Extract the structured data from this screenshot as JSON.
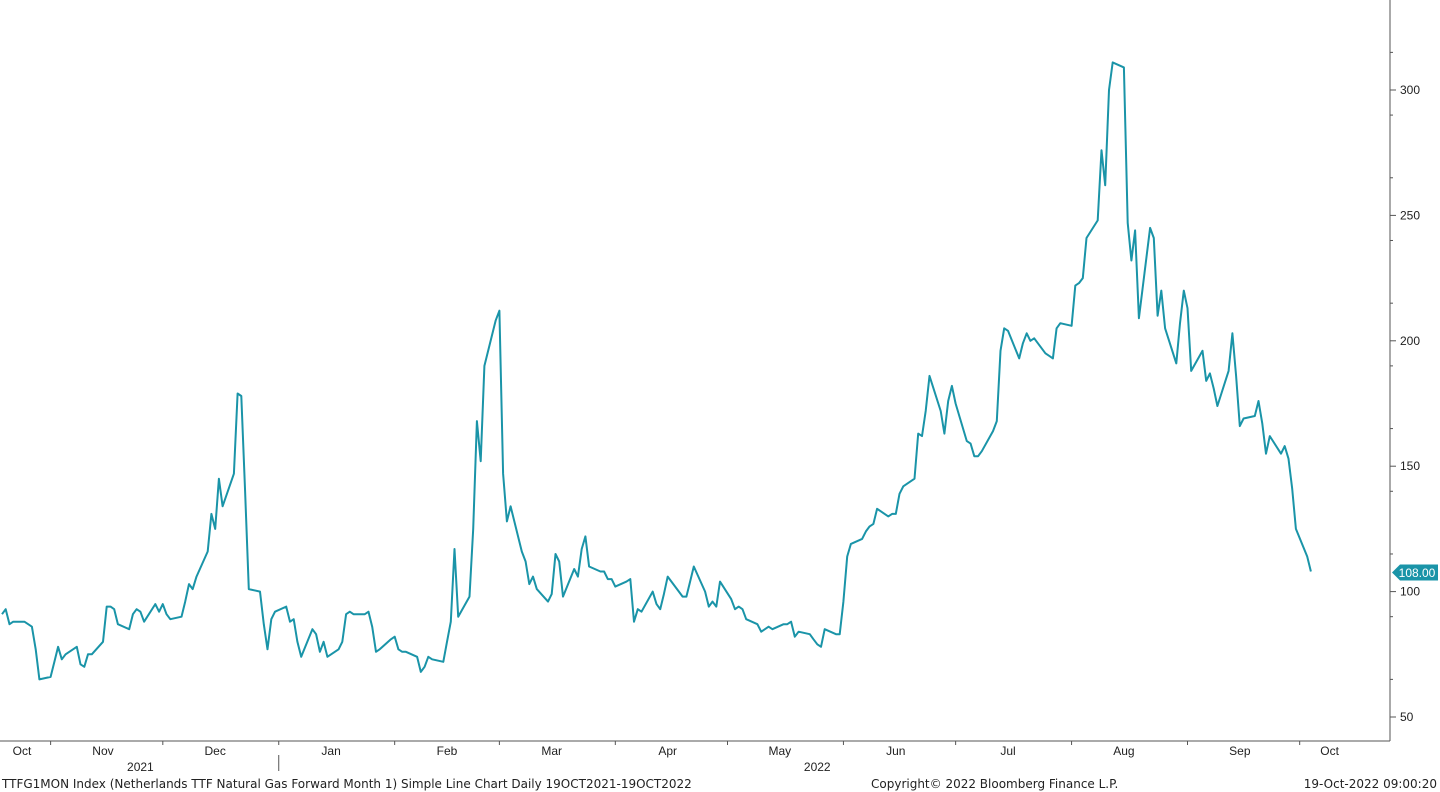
{
  "chart_data": {
    "type": "line",
    "series": [
      {
        "color": "#1a94a8",
        "points": [
          [
            "2021-10-19",
            91
          ],
          [
            "2021-10-20",
            93
          ],
          [
            "2021-10-21",
            87
          ],
          [
            "2021-10-22",
            88
          ],
          [
            "2021-10-25",
            88
          ],
          [
            "2021-10-26",
            87
          ],
          [
            "2021-10-27",
            86
          ],
          [
            "2021-10-28",
            77
          ],
          [
            "2021-10-29",
            65
          ],
          [
            "2021-11-01",
            66
          ],
          [
            "2021-11-02",
            72
          ],
          [
            "2021-11-03",
            78
          ],
          [
            "2021-11-04",
            73
          ],
          [
            "2021-11-05",
            75
          ],
          [
            "2021-11-08",
            78
          ],
          [
            "2021-11-09",
            71
          ],
          [
            "2021-11-10",
            70
          ],
          [
            "2021-11-11",
            75
          ],
          [
            "2021-11-12",
            75
          ],
          [
            "2021-11-15",
            80
          ],
          [
            "2021-11-16",
            94
          ],
          [
            "2021-11-17",
            94
          ],
          [
            "2021-11-18",
            93
          ],
          [
            "2021-11-19",
            87
          ],
          [
            "2021-11-22",
            85
          ],
          [
            "2021-11-23",
            91
          ],
          [
            "2021-11-24",
            93
          ],
          [
            "2021-11-25",
            92
          ],
          [
            "2021-11-26",
            88
          ],
          [
            "2021-11-29",
            95
          ],
          [
            "2021-11-30",
            92
          ],
          [
            "2021-12-01",
            95
          ],
          [
            "2021-12-02",
            91
          ],
          [
            "2021-12-03",
            89
          ],
          [
            "2021-12-06",
            90
          ],
          [
            "2021-12-07",
            96
          ],
          [
            "2021-12-08",
            103
          ],
          [
            "2021-12-09",
            101
          ],
          [
            "2021-12-10",
            106
          ],
          [
            "2021-12-13",
            116
          ],
          [
            "2021-12-14",
            131
          ],
          [
            "2021-12-15",
            125
          ],
          [
            "2021-12-16",
            145
          ],
          [
            "2021-12-17",
            134
          ],
          [
            "2021-12-20",
            147
          ],
          [
            "2021-12-21",
            179
          ],
          [
            "2021-12-22",
            178
          ],
          [
            "2021-12-23",
            140
          ],
          [
            "2021-12-24",
            101
          ],
          [
            "2021-12-27",
            100
          ],
          [
            "2021-12-28",
            87
          ],
          [
            "2021-12-29",
            77
          ],
          [
            "2021-12-30",
            89
          ],
          [
            "2021-12-31",
            92
          ],
          [
            "2022-01-03",
            94
          ],
          [
            "2022-01-04",
            88
          ],
          [
            "2022-01-05",
            89
          ],
          [
            "2022-01-06",
            80
          ],
          [
            "2022-01-07",
            74
          ],
          [
            "2022-01-10",
            85
          ],
          [
            "2022-01-11",
            83
          ],
          [
            "2022-01-12",
            76
          ],
          [
            "2022-01-13",
            80
          ],
          [
            "2022-01-14",
            74
          ],
          [
            "2022-01-17",
            77
          ],
          [
            "2022-01-18",
            80
          ],
          [
            "2022-01-19",
            91
          ],
          [
            "2022-01-20",
            92
          ],
          [
            "2022-01-21",
            91
          ],
          [
            "2022-01-24",
            91
          ],
          [
            "2022-01-25",
            92
          ],
          [
            "2022-01-26",
            86
          ],
          [
            "2022-01-27",
            76
          ],
          [
            "2022-01-28",
            77
          ],
          [
            "2022-01-31",
            81
          ],
          [
            "2022-02-01",
            82
          ],
          [
            "2022-02-02",
            77
          ],
          [
            "2022-02-03",
            76
          ],
          [
            "2022-02-04",
            76
          ],
          [
            "2022-02-07",
            74
          ],
          [
            "2022-02-08",
            68
          ],
          [
            "2022-02-09",
            70
          ],
          [
            "2022-02-10",
            74
          ],
          [
            "2022-02-11",
            73
          ],
          [
            "2022-02-14",
            72
          ],
          [
            "2022-02-15",
            80
          ],
          [
            "2022-02-16",
            88
          ],
          [
            "2022-02-17",
            117
          ],
          [
            "2022-02-18",
            90
          ],
          [
            "2022-02-21",
            98
          ],
          [
            "2022-02-22",
            125
          ],
          [
            "2022-02-23",
            168
          ],
          [
            "2022-02-24",
            152
          ],
          [
            "2022-02-25",
            190
          ],
          [
            "2022-02-28",
            208
          ],
          [
            "2022-03-01",
            212
          ],
          [
            "2022-03-02",
            147
          ],
          [
            "2022-03-03",
            128
          ],
          [
            "2022-03-04",
            134
          ],
          [
            "2022-03-07",
            116
          ],
          [
            "2022-03-08",
            112
          ],
          [
            "2022-03-09",
            103
          ],
          [
            "2022-03-10",
            106
          ],
          [
            "2022-03-11",
            101
          ],
          [
            "2022-03-14",
            96
          ],
          [
            "2022-03-15",
            99
          ],
          [
            "2022-03-16",
            115
          ],
          [
            "2022-03-17",
            112
          ],
          [
            "2022-03-18",
            98
          ],
          [
            "2022-03-21",
            109
          ],
          [
            "2022-03-22",
            106
          ],
          [
            "2022-03-23",
            117
          ],
          [
            "2022-03-24",
            122
          ],
          [
            "2022-03-25",
            110
          ],
          [
            "2022-03-28",
            108
          ],
          [
            "2022-03-29",
            108
          ],
          [
            "2022-03-30",
            105
          ],
          [
            "2022-03-31",
            105
          ],
          [
            "2022-04-01",
            102
          ],
          [
            "2022-04-04",
            104
          ],
          [
            "2022-04-05",
            105
          ],
          [
            "2022-04-06",
            88
          ],
          [
            "2022-04-07",
            93
          ],
          [
            "2022-04-08",
            92
          ],
          [
            "2022-04-11",
            100
          ],
          [
            "2022-04-12",
            95
          ],
          [
            "2022-04-13",
            93
          ],
          [
            "2022-04-14",
            99
          ],
          [
            "2022-04-15",
            106
          ],
          [
            "2022-04-18",
            100
          ],
          [
            "2022-04-19",
            98
          ],
          [
            "2022-04-20",
            98
          ],
          [
            "2022-04-21",
            104
          ],
          [
            "2022-04-22",
            110
          ],
          [
            "2022-04-25",
            100
          ],
          [
            "2022-04-26",
            94
          ],
          [
            "2022-04-27",
            96
          ],
          [
            "2022-04-28",
            94
          ],
          [
            "2022-04-29",
            104
          ],
          [
            "2022-05-02",
            97
          ],
          [
            "2022-05-03",
            93
          ],
          [
            "2022-05-04",
            94
          ],
          [
            "2022-05-05",
            93
          ],
          [
            "2022-05-06",
            89
          ],
          [
            "2022-05-09",
            87
          ],
          [
            "2022-05-10",
            84
          ],
          [
            "2022-05-11",
            85
          ],
          [
            "2022-05-12",
            86
          ],
          [
            "2022-05-13",
            85
          ],
          [
            "2022-05-16",
            87
          ],
          [
            "2022-05-17",
            87
          ],
          [
            "2022-05-18",
            88
          ],
          [
            "2022-05-19",
            82
          ],
          [
            "2022-05-20",
            84
          ],
          [
            "2022-05-23",
            83
          ],
          [
            "2022-05-24",
            81
          ],
          [
            "2022-05-25",
            79
          ],
          [
            "2022-05-26",
            78
          ],
          [
            "2022-05-27",
            85
          ],
          [
            "2022-05-30",
            83
          ],
          [
            "2022-05-31",
            83
          ],
          [
            "2022-06-01",
            96
          ],
          [
            "2022-06-02",
            114
          ],
          [
            "2022-06-03",
            119
          ],
          [
            "2022-06-06",
            121
          ],
          [
            "2022-06-07",
            124
          ],
          [
            "2022-06-08",
            126
          ],
          [
            "2022-06-09",
            127
          ],
          [
            "2022-06-10",
            133
          ],
          [
            "2022-06-13",
            130
          ],
          [
            "2022-06-14",
            131
          ],
          [
            "2022-06-15",
            131
          ],
          [
            "2022-06-16",
            139
          ],
          [
            "2022-06-17",
            142
          ],
          [
            "2022-06-20",
            145
          ],
          [
            "2022-06-21",
            163
          ],
          [
            "2022-06-22",
            162
          ],
          [
            "2022-06-23",
            172
          ],
          [
            "2022-06-24",
            186
          ],
          [
            "2022-06-27",
            172
          ],
          [
            "2022-06-28",
            163
          ],
          [
            "2022-06-29",
            176
          ],
          [
            "2022-06-30",
            182
          ],
          [
            "2022-07-01",
            175
          ],
          [
            "2022-07-04",
            160
          ],
          [
            "2022-07-05",
            159
          ],
          [
            "2022-07-06",
            154
          ],
          [
            "2022-07-07",
            154
          ],
          [
            "2022-07-08",
            156
          ],
          [
            "2022-07-11",
            164
          ],
          [
            "2022-07-12",
            168
          ],
          [
            "2022-07-13",
            196
          ],
          [
            "2022-07-14",
            205
          ],
          [
            "2022-07-15",
            204
          ],
          [
            "2022-07-18",
            193
          ],
          [
            "2022-07-19",
            199
          ],
          [
            "2022-07-20",
            203
          ],
          [
            "2022-07-21",
            200
          ],
          [
            "2022-07-22",
            201
          ],
          [
            "2022-07-25",
            195
          ],
          [
            "2022-07-26",
            194
          ],
          [
            "2022-07-27",
            193
          ],
          [
            "2022-07-28",
            205
          ],
          [
            "2022-07-29",
            207
          ],
          [
            "2022-08-01",
            206
          ],
          [
            "2022-08-02",
            222
          ],
          [
            "2022-08-03",
            223
          ],
          [
            "2022-08-04",
            225
          ],
          [
            "2022-08-05",
            241
          ],
          [
            "2022-08-08",
            248
          ],
          [
            "2022-08-09",
            276
          ],
          [
            "2022-08-10",
            262
          ],
          [
            "2022-08-11",
            300
          ],
          [
            "2022-08-12",
            311
          ],
          [
            "2022-08-15",
            309
          ],
          [
            "2022-08-16",
            247
          ],
          [
            "2022-08-17",
            232
          ],
          [
            "2022-08-18",
            244
          ],
          [
            "2022-08-19",
            209
          ],
          [
            "2022-08-22",
            245
          ],
          [
            "2022-08-23",
            241
          ],
          [
            "2022-08-24",
            210
          ],
          [
            "2022-08-25",
            220
          ],
          [
            "2022-08-26",
            205
          ],
          [
            "2022-08-29",
            191
          ],
          [
            "2022-08-30",
            207
          ],
          [
            "2022-08-31",
            220
          ],
          [
            "2022-09-01",
            213
          ],
          [
            "2022-09-02",
            188
          ],
          [
            "2022-09-05",
            196
          ],
          [
            "2022-09-06",
            184
          ],
          [
            "2022-09-07",
            187
          ],
          [
            "2022-09-08",
            181
          ],
          [
            "2022-09-09",
            174
          ],
          [
            "2022-09-12",
            188
          ],
          [
            "2022-09-13",
            203
          ],
          [
            "2022-09-14",
            186
          ],
          [
            "2022-09-15",
            166
          ],
          [
            "2022-09-16",
            169
          ],
          [
            "2022-09-19",
            170
          ],
          [
            "2022-09-20",
            176
          ],
          [
            "2022-09-21",
            167
          ],
          [
            "2022-09-22",
            155
          ],
          [
            "2022-09-23",
            162
          ],
          [
            "2022-09-26",
            155
          ],
          [
            "2022-09-27",
            158
          ],
          [
            "2022-09-28",
            153
          ],
          [
            "2022-09-29",
            141
          ],
          [
            "2022-09-30",
            125
          ],
          [
            "2022-10-03",
            114
          ],
          [
            "2022-10-04",
            108
          ]
        ]
      }
    ],
    "y_axis": {
      "min": 40,
      "max": 335,
      "position": "right",
      "ticks": [
        50,
        100,
        150,
        200,
        250,
        300
      ]
    },
    "x_axis": {
      "min": "2021-10-19",
      "max": "2022-10-19",
      "month_ticks": [
        {
          "date": "2021-10-19",
          "label": "Oct"
        },
        {
          "date": "2021-11-15",
          "label": "Nov"
        },
        {
          "date": "2021-12-15",
          "label": "Dec"
        },
        {
          "date": "2022-01-15",
          "label": "Jan"
        },
        {
          "date": "2022-02-15",
          "label": "Feb"
        },
        {
          "date": "2022-03-15",
          "label": "Mar"
        },
        {
          "date": "2022-04-15",
          "label": "Apr"
        },
        {
          "date": "2022-05-15",
          "label": "May"
        },
        {
          "date": "2022-06-15",
          "label": "Jun"
        },
        {
          "date": "2022-07-15",
          "label": "Jul"
        },
        {
          "date": "2022-08-15",
          "label": "Aug"
        },
        {
          "date": "2022-09-15",
          "label": "Sep"
        },
        {
          "date": "2022-10-09",
          "label": "Oct"
        }
      ],
      "year_labels": [
        {
          "date": "2021-11-25",
          "label": "2021"
        },
        {
          "date": "2022-05-25",
          "label": "2022"
        }
      ]
    },
    "last_value_label": "108.00",
    "grid": false,
    "legend": "none"
  },
  "footer": {
    "description": "TTFG1MON Index (Netherlands TTF Natural Gas Forward Month 1) Simple Line Chart  Daily 19OCT2021-19OCT2022",
    "copyright": "Copyright© 2022 Bloomberg Finance L.P.",
    "timestamp": "19-Oct-2022 09:00:20"
  }
}
